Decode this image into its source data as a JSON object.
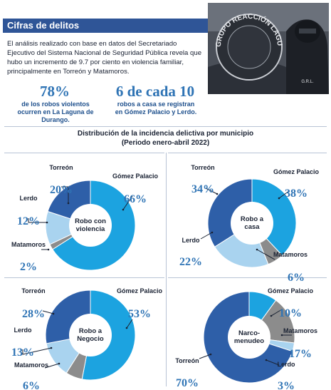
{
  "header": {
    "title": "Cifras de delitos"
  },
  "intro": "El análisis realizado con base en datos del Secretariado Ejecutivo del Sistema Nacional de Seguridad Pública revela que hubo un incremento de 9.7 por ciento en violencia familiar, principalmente en Torreón y Matamoros.",
  "stats": [
    {
      "value": "78%",
      "text": "de los robos violentos ocurren en La Laguna de Durango."
    },
    {
      "value": "6 de cada 10",
      "text": "robos a casa se registran en Gómez Palacio y Lerdo."
    }
  ],
  "photo": {
    "caption_text": "GRUPO REACCIÓN LAGUNA",
    "badge_text": "G.R.L."
  },
  "distribution": {
    "title": "Distribución de la incidencia delictiva por municipio",
    "subtitle": "(Periodo enero-abril 2022)"
  },
  "colors": {
    "Gómez Palacio": "#1ca3e0",
    "Torreón": "#2e5fa8",
    "Lerdo": "#a9d3ef",
    "Matamoros": "#8c8c8c",
    "header": "#2f5597"
  },
  "chart_data": [
    {
      "type": "pie",
      "title": "Robo con violencia",
      "categories": [
        "Gómez Palacio",
        "Matamoros",
        "Lerdo",
        "Torreón"
      ],
      "values": [
        66,
        2,
        12,
        20
      ],
      "labels": [
        "66%",
        "2%",
        "12%",
        "20%"
      ]
    },
    {
      "type": "pie",
      "title": "Robo a casa",
      "categories": [
        "Gómez Palacio",
        "Matamoros",
        "Lerdo",
        "Torreón"
      ],
      "values": [
        38,
        6,
        22,
        34
      ],
      "labels": [
        "38%",
        "6%",
        "22%",
        "34%"
      ]
    },
    {
      "type": "pie",
      "title": "Robo a Negocio",
      "categories": [
        "Gómez Palacio",
        "Matamoros",
        "Lerdo",
        "Torreón"
      ],
      "values": [
        53,
        6,
        13,
        28
      ],
      "labels": [
        "53%",
        "6%",
        "13%",
        "28%"
      ]
    },
    {
      "type": "pie",
      "title": "Narco-menudeo",
      "categories": [
        "Gómez Palacio",
        "Matamoros",
        "Lerdo",
        "Torreón"
      ],
      "values": [
        10,
        17,
        3,
        70
      ],
      "labels": [
        "10%",
        "17%",
        "3%",
        "70%"
      ]
    }
  ]
}
